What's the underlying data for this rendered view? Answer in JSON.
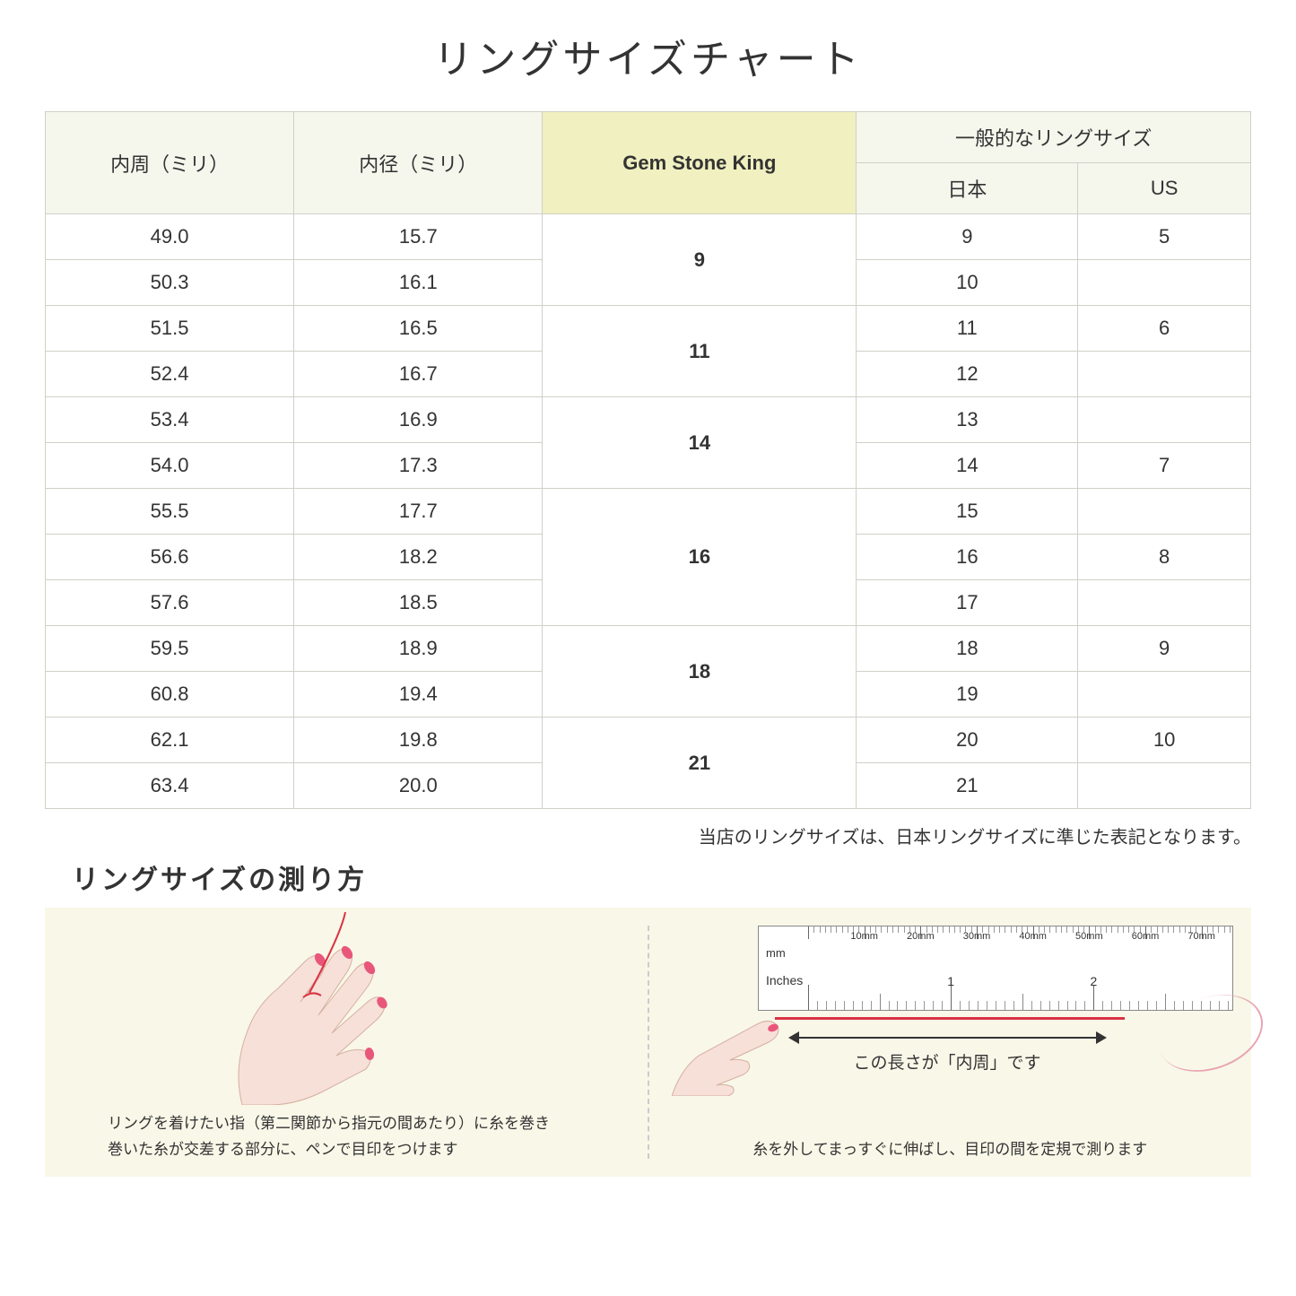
{
  "title": "リングサイズチャート",
  "table": {
    "headers": {
      "circumference": "内周（ミリ）",
      "diameter": "内径（ミリ）",
      "gemstone": "Gem Stone King",
      "general": "一般的なリングサイズ",
      "japan": "日本",
      "us": "US"
    },
    "groups": [
      {
        "gem": "9",
        "rows": [
          {
            "c": "49.0",
            "d": "15.7",
            "jp": "9",
            "us": "5"
          },
          {
            "c": "50.3",
            "d": "16.1",
            "jp": "10",
            "us": ""
          }
        ]
      },
      {
        "gem": "11",
        "rows": [
          {
            "c": "51.5",
            "d": "16.5",
            "jp": "11",
            "us": "6"
          },
          {
            "c": "52.4",
            "d": "16.7",
            "jp": "12",
            "us": ""
          }
        ]
      },
      {
        "gem": "14",
        "rows": [
          {
            "c": "53.4",
            "d": "16.9",
            "jp": "13",
            "us": ""
          },
          {
            "c": "54.0",
            "d": "17.3",
            "jp": "14",
            "us": "7"
          }
        ]
      },
      {
        "gem": "16",
        "rows": [
          {
            "c": "55.5",
            "d": "17.7",
            "jp": "15",
            "us": ""
          },
          {
            "c": "56.6",
            "d": "18.2",
            "jp": "16",
            "us": "8"
          },
          {
            "c": "57.6",
            "d": "18.5",
            "jp": "17",
            "us": ""
          }
        ]
      },
      {
        "gem": "18",
        "rows": [
          {
            "c": "59.5",
            "d": "18.9",
            "jp": "18",
            "us": "9"
          },
          {
            "c": "60.8",
            "d": "19.4",
            "jp": "19",
            "us": ""
          }
        ]
      },
      {
        "gem": "21",
        "rows": [
          {
            "c": "62.1",
            "d": "19.8",
            "jp": "20",
            "us": "10"
          },
          {
            "c": "63.4",
            "d": "20.0",
            "jp": "21",
            "us": ""
          }
        ]
      }
    ]
  },
  "note": "当店のリングサイズは、日本リングサイズに準じた表記となります。",
  "subtitle": "リングサイズの測り方",
  "instructions": {
    "left_line1": "リングを着けたい指（第二関節から指元の間あたり）に糸を巻き",
    "left_line2": "巻いた糸が交差する部分に、ペンで目印をつけます",
    "right": "糸を外してまっすぐに伸ばし、目印の間を定規で測ります",
    "measure_label": "この長さが「内周」です"
  },
  "ruler": {
    "mm_label": "mm",
    "in_label": "Inches",
    "mm_marks": [
      "10mm",
      "20mm",
      "30mm",
      "40mm",
      "50mm",
      "60mm",
      "70mm"
    ],
    "in_marks": [
      "1",
      "2"
    ]
  },
  "colors": {
    "header_bg": "#f5f6ec",
    "highlight_bg": "#f0f0c0",
    "border": "#d0d0c8",
    "instruction_bg": "#f9f7e8",
    "thread": "#d93344",
    "nail": "#e8577a",
    "skin": "#f7e0d8"
  }
}
